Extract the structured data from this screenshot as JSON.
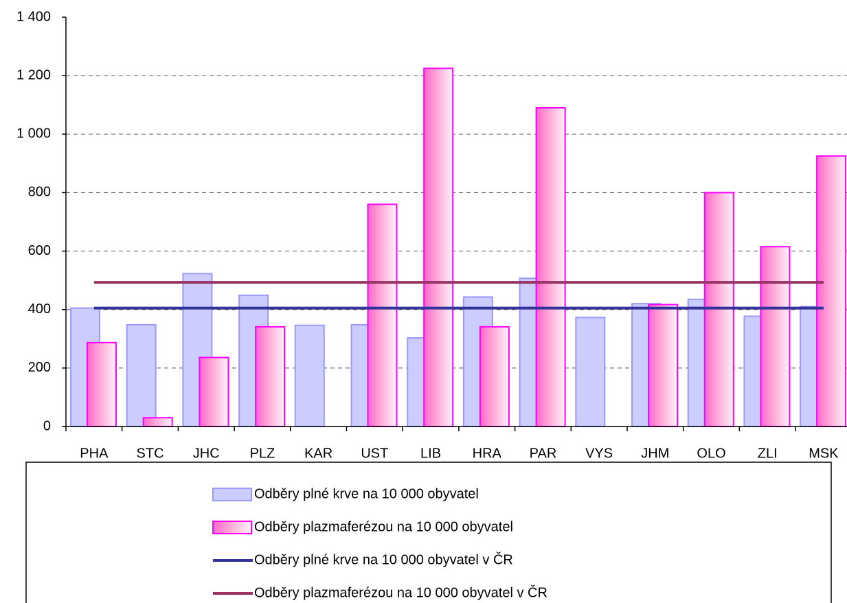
{
  "chart_data": {
    "type": "bar",
    "categories": [
      "PHA",
      "STC",
      "JHC",
      "PLZ",
      "KAR",
      "UST",
      "LIB",
      "HRA",
      "PAR",
      "VYS",
      "JHM",
      "OLO",
      "ZLI",
      "MSK"
    ],
    "series": [
      {
        "name": "Odběry plné krve na 10 000 obyvatel",
        "type": "bar",
        "color": "#ccccff",
        "stroke": "#9999ff",
        "values": [
          405,
          348,
          523,
          449,
          346,
          348,
          303,
          443,
          507,
          373,
          420,
          435,
          377,
          410
        ]
      },
      {
        "name": "Odběry plazmaferézou na 10 000 obyvatel",
        "type": "bar",
        "color": "#ff99cc",
        "stroke": "#ff00ff",
        "values": [
          287,
          30,
          236,
          341,
          null,
          760,
          1225,
          341,
          1090,
          null,
          417,
          800,
          615,
          925
        ]
      },
      {
        "name": "Odběry plné krve na 10 000 obyvatel v ČR",
        "type": "line",
        "color": "#333399",
        "values": [
          405,
          405,
          405,
          405,
          405,
          405,
          405,
          405,
          405,
          405,
          405,
          405,
          405,
          405
        ]
      },
      {
        "name": "Odběry plazmaferézou na 10 000 obyvatel v ČR",
        "type": "line",
        "color": "#993366",
        "values": [
          493,
          493,
          493,
          493,
          493,
          493,
          493,
          493,
          493,
          493,
          493,
          493,
          493,
          493
        ]
      }
    ],
    "ylim": [
      0,
      1400
    ],
    "yticks": [
      0,
      200,
      400,
      600,
      800,
      {
        "value": 1000,
        "label": "1 000"
      },
      {
        "value": 1200,
        "label": "1 200"
      },
      {
        "value": 1400,
        "label": "1 400"
      }
    ],
    "grid": true,
    "legend": "bottom"
  }
}
